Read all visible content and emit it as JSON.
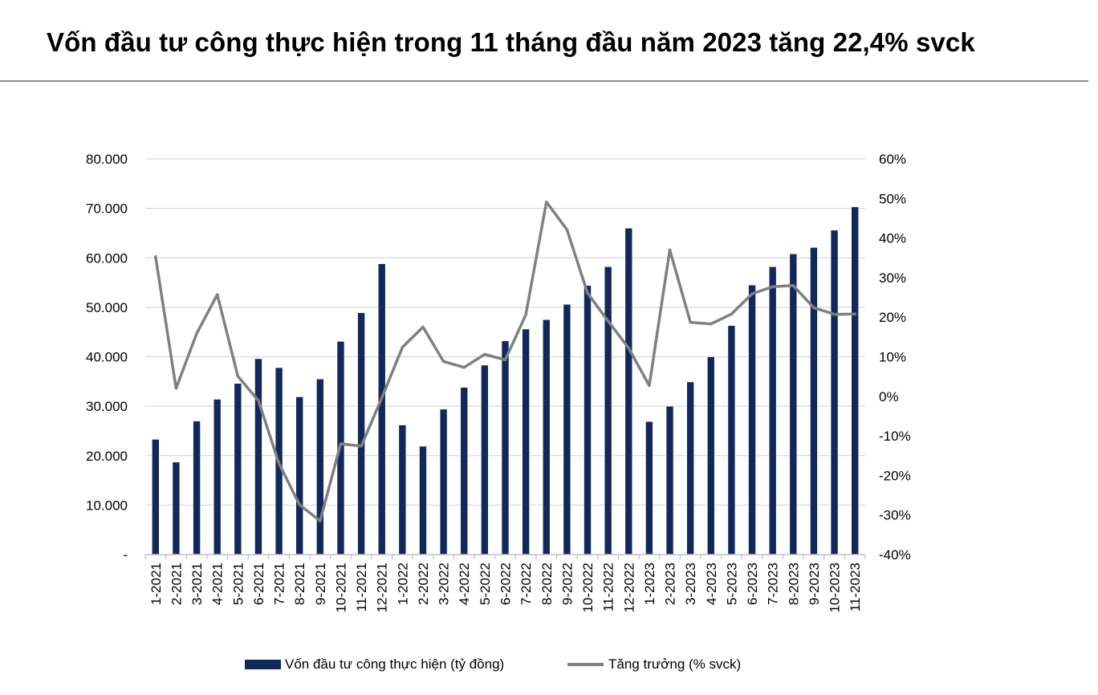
{
  "title": "Vốn đầu tư công thực hiện trong 11 tháng đầu năm 2023 tăng 22,4% svck",
  "colors": {
    "bar": "#13285a",
    "line": "#808080",
    "grid": "#d9d9d9",
    "rule": "#8c8c8c"
  },
  "chart_data": {
    "type": "bar",
    "categories": [
      "1-2021",
      "2-2021",
      "3-2021",
      "4-2021",
      "5-2021",
      "6-2021",
      "7-2021",
      "8-2021",
      "9-2021",
      "10-2021",
      "11-2021",
      "12-2021",
      "1-2022",
      "2-2022",
      "3-2022",
      "4-2022",
      "5-2022",
      "6-2022",
      "7-2022",
      "8-2022",
      "9-2022",
      "10-2022",
      "11-2022",
      "12-2022",
      "1-2023",
      "2-2023",
      "3-2023",
      "4-2023",
      "5-2023",
      "6-2023",
      "7-2023",
      "8-2023",
      "9-2023",
      "10-2023",
      "11-2023"
    ],
    "series": [
      {
        "name": "Vốn đầu tư công thực hiện (tỷ đồng)",
        "type": "bar",
        "axis": "left",
        "values": [
          23300,
          18700,
          27000,
          31400,
          34600,
          39600,
          37800,
          31900,
          35500,
          43100,
          48900,
          58800,
          26200,
          21900,
          29400,
          33800,
          38300,
          43200,
          45600,
          47500,
          50600,
          54400,
          58200,
          66000,
          26900,
          30000,
          34900,
          40000,
          46300,
          54500,
          58200,
          60800,
          62100,
          65600,
          70300
        ]
      },
      {
        "name": "Tăng trưởng (% svck)",
        "type": "line",
        "axis": "right",
        "values": [
          35.3,
          2.0,
          15.9,
          25.7,
          5.1,
          -1.1,
          -17.0,
          -27.4,
          -31.5,
          -12.0,
          -12.6,
          -0.4,
          12.4,
          17.5,
          8.8,
          7.3,
          10.6,
          9.2,
          20.6,
          49.1,
          42.1,
          26.1,
          19.0,
          12.2,
          2.7,
          37.0,
          18.7,
          18.3,
          20.8,
          25.9,
          27.7,
          28.0,
          22.4,
          20.7,
          20.8
        ]
      }
    ],
    "y_left": {
      "ylim": [
        0,
        80000
      ],
      "ticks": [
        0,
        10000,
        20000,
        30000,
        40000,
        50000,
        60000,
        70000,
        80000
      ],
      "tick_labels": [
        "-",
        "10.000",
        "20.000",
        "30.000",
        "40.000",
        "50.000",
        "60.000",
        "70.000",
        "80.000"
      ]
    },
    "y_right": {
      "ylim": [
        -40,
        60
      ],
      "ticks": [
        -40,
        -30,
        -20,
        -10,
        0,
        10,
        20,
        30,
        40,
        50,
        60
      ],
      "tick_labels": [
        "-40%",
        "-30%",
        "-20%",
        "-10%",
        "0%",
        "10%",
        "20%",
        "30%",
        "40%",
        "50%",
        "60%"
      ]
    },
    "grid": true,
    "legend_position": "bottom"
  }
}
